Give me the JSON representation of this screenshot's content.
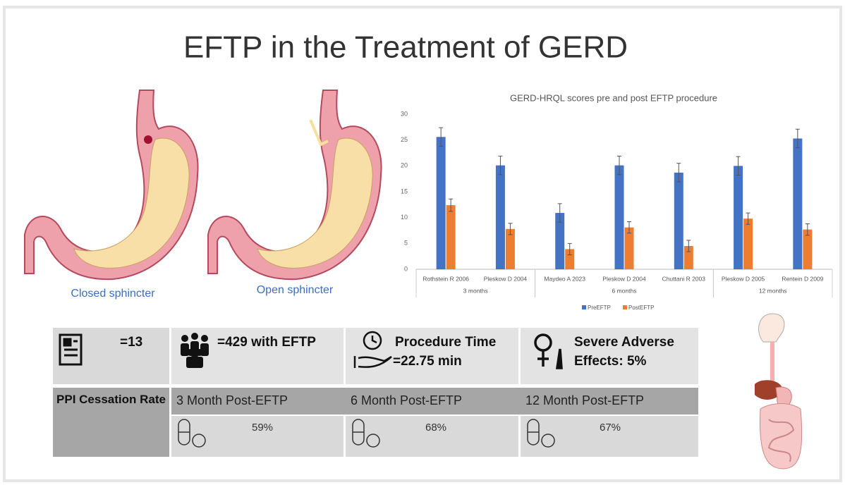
{
  "title": "EFTP in the Treatment of GERD",
  "illustrations": [
    {
      "caption": "Closed sphincter"
    },
    {
      "caption": "Open sphincter"
    }
  ],
  "chart_data": {
    "type": "bar",
    "title": "GERD-HRQL scores pre and post EFTP procedure",
    "categories": [
      "Rothstein R 2006",
      "Pleskow D 2004",
      "Maydeo A 2023",
      "Pleskow D 2004",
      "Chuttani R 2003",
      "Pleskow D 2005",
      "Rentein D 2009"
    ],
    "category_groups": [
      "3 months",
      "3 months",
      "6 months",
      "6 months",
      "6 months",
      "12 months",
      "12 months"
    ],
    "series": [
      {
        "name": "PreEFTP",
        "color": "#4472c4",
        "values": [
          25.6,
          20.1,
          10.9,
          20.1,
          18.7,
          20.0,
          25.3
        ],
        "errors": [
          1.8,
          1.8,
          1.8,
          1.8,
          1.8,
          1.8,
          1.8
        ]
      },
      {
        "name": "PostEFTP",
        "color": "#ed7d31",
        "values": [
          12.4,
          7.8,
          3.9,
          8.1,
          4.5,
          9.8,
          7.7
        ],
        "errors": [
          1.2,
          1.1,
          1.1,
          1.1,
          1.1,
          1.1,
          1.1
        ]
      }
    ],
    "ylim": [
      0,
      30
    ],
    "yticks": [
      0,
      5,
      10,
      15,
      20,
      25,
      30
    ],
    "grid": false,
    "legend": "bottom"
  },
  "stats": [
    {
      "text": "=13"
    },
    {
      "text": "=429 with EFTP"
    },
    {
      "lines": [
        "Procedure Time",
        "=22.75 min"
      ]
    },
    {
      "lines": [
        "Severe Adverse",
        "Effects: 5%"
      ]
    }
  ],
  "ppi": {
    "label": "PPI Cessation Rate",
    "columns": [
      {
        "header": "3 Month Post-EFTP",
        "rate": "59%"
      },
      {
        "header": "6 Month Post-EFTP",
        "rate": "68%"
      },
      {
        "header": "12 Month Post-EFTP",
        "rate": "67%"
      }
    ]
  }
}
